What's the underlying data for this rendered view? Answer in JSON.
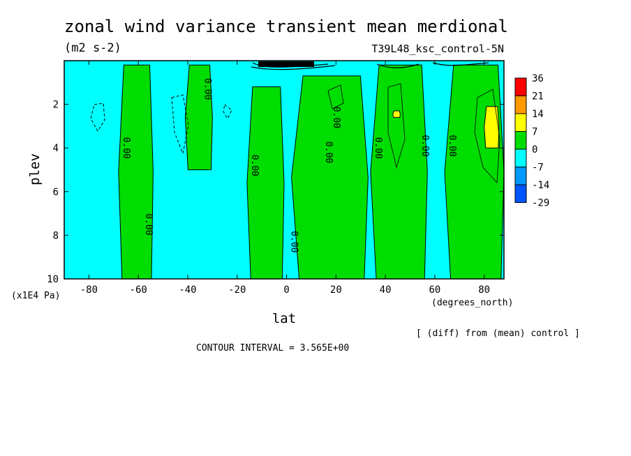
{
  "chart_data": {
    "type": "heatmap",
    "title": "zonal wind variance transient mean merdional",
    "subtitle": "(m2 s-2)",
    "run_label": "T39L48_ksc_control-5N",
    "xlabel": "lat",
    "x_units": "(degrees_north)",
    "ylabel": "plev",
    "y_units": "(x1E4 Pa)",
    "xlim": [
      -90,
      88
    ],
    "ylim": [
      0,
      10
    ],
    "y_inverted": true,
    "x_ticks": [
      -80,
      -60,
      -40,
      -20,
      0,
      20,
      40,
      60,
      80
    ],
    "x_tick_labels": [
      "-80",
      "-60",
      "-40",
      "-20",
      "0",
      "20",
      "40",
      "60",
      "80"
    ],
    "y_ticks": [
      2,
      4,
      6,
      8,
      10
    ],
    "y_tick_labels": [
      "2",
      "4",
      "6",
      "8",
      "10"
    ],
    "contour_label": "0.00",
    "contour_interval_text": "CONTOUR INTERVAL = 3.565E+00",
    "note": "[ (diff) from (mean) control ]",
    "colorbar": {
      "labels": [
        "36",
        "21",
        "14",
        "7",
        "0",
        "-7",
        "-14",
        "-29"
      ],
      "colors": [
        "#ff0000",
        "#ff9900",
        "#ffff00",
        "#00dd00",
        "#00ffff",
        "#0099ff",
        "#0055ff"
      ],
      "level_colors_top_to_bottom": "36-21 red, 21-14 orange, 14-7 yellow, 7-0 green, 0 to -7 cyan, -7 to -14 light blue, -14 to -29 blue"
    },
    "regions": [
      {
        "level": "0 to 7",
        "color": "#00dd00",
        "lat": [
          -68,
          -54
        ],
        "plev": [
          0.2,
          10
        ]
      },
      {
        "level": "0 to 7",
        "color": "#00dd00",
        "lat": [
          -41,
          -30
        ],
        "plev": [
          0.2,
          5
        ]
      },
      {
        "level": "0 to 7",
        "color": "#00dd00",
        "lat": [
          -16,
          -1
        ],
        "plev": [
          1.2,
          10
        ]
      },
      {
        "level": "0 to 7",
        "color": "#00dd00",
        "lat": [
          2,
          33
        ],
        "plev": [
          0.7,
          10
        ]
      },
      {
        "level": "0 to 7",
        "color": "#00dd00",
        "lat": [
          34,
          57
        ],
        "plev": [
          0.2,
          10
        ]
      },
      {
        "level": "0 to 7",
        "color": "#00dd00",
        "lat": [
          64,
          88
        ],
        "plev": [
          0.2,
          10
        ]
      },
      {
        "level": "7 to 14",
        "color": "#ffff00",
        "lat": [
          80,
          86
        ],
        "plev": [
          2.1,
          4.0
        ]
      },
      {
        "level": "7 to 14",
        "color": "#ffff00",
        "lat": [
          43,
          46
        ],
        "plev": [
          2.3,
          2.6
        ]
      }
    ]
  }
}
